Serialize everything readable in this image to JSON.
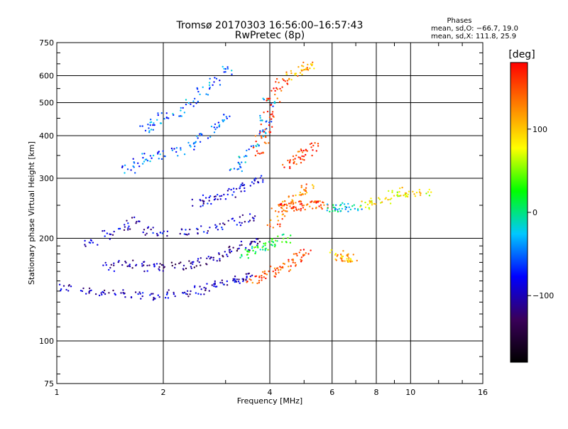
{
  "title_line1": "Tromsø 20170303 16:56:00–16:57:43",
  "title_line2": "RwPretec (8p)",
  "phases": {
    "header": "Phases",
    "line1": "mean, sd,O: −66.7, 19.0",
    "line2": "mean, sd,X: 111.8, 25.9"
  },
  "chart_data": {
    "type": "scatter",
    "title": "Tromsø 20170303 16:56:00–16:57:43",
    "subtitle": "RwPretec (8p)",
    "xlabel": "Frequency [MHz]",
    "ylabel": "Stationary phase Virtual Height [km]",
    "x_scale": "log",
    "y_scale": "log",
    "xlim": [
      1,
      16
    ],
    "ylim": [
      75,
      750
    ],
    "x_ticks": [
      1,
      2,
      4,
      6,
      8,
      10,
      16
    ],
    "x_tick_labels": [
      "1",
      "2",
      "4",
      "6",
      "8",
      "10",
      "16"
    ],
    "y_ticks": [
      75,
      100,
      200,
      300,
      400,
      500,
      600,
      750
    ],
    "y_tick_labels": [
      "75",
      "100",
      "200",
      "300",
      "400",
      "500",
      "600",
      "750"
    ],
    "grid": true,
    "colorbar": {
      "label": "[deg]",
      "range": [
        -180,
        180
      ],
      "ticks": [
        100,
        0,
        -100
      ],
      "tick_labels": [
        "100",
        "0",
        "−100"
      ],
      "colors": [
        "#000000",
        "#3a005a",
        "#0000ff",
        "#00c8ff",
        "#00ff00",
        "#ffff00",
        "#ff8000",
        "#ff0000"
      ]
    },
    "traces": [
      {
        "name": "",
        "points": [
          [
            1.05,
            143
          ],
          [
            1.2,
            141
          ],
          [
            1.35,
            139
          ],
          [
            1.5,
            137
          ],
          [
            1.7,
            136
          ],
          [
            1.9,
            136
          ],
          [
            2.1,
            137
          ],
          [
            2.3,
            139
          ],
          [
            2.5,
            141
          ],
          [
            2.7,
            144
          ],
          [
            2.9,
            147
          ],
          [
            3.1,
            150
          ],
          [
            3.3,
            152
          ],
          [
            3.5,
            154
          ]
        ],
        "phase": -100
      },
      {
        "name": "",
        "points": [
          [
            3.6,
            152
          ],
          [
            3.8,
            154
          ],
          [
            4.0,
            157
          ],
          [
            4.2,
            161
          ],
          [
            4.4,
            165
          ],
          [
            4.6,
            170
          ],
          [
            4.8,
            176
          ],
          [
            5.0,
            180
          ]
        ],
        "phase": 150
      },
      {
        "name": "",
        "points": [
          [
            1.4,
            165
          ],
          [
            1.55,
            170
          ],
          [
            1.7,
            168
          ],
          [
            1.85,
            165
          ],
          [
            2.0,
            165
          ],
          [
            2.2,
            166
          ],
          [
            2.4,
            168
          ],
          [
            2.6,
            171
          ],
          [
            2.8,
            175
          ],
          [
            3.0,
            180
          ],
          [
            3.2,
            185
          ],
          [
            3.4,
            190
          ],
          [
            3.6,
            194
          ]
        ],
        "phase": -110
      },
      {
        "name": "",
        "points": [
          [
            1.25,
            195
          ],
          [
            1.4,
            205
          ],
          [
            1.55,
            215
          ],
          [
            1.65,
            225
          ],
          [
            1.8,
            210
          ],
          [
            2.0,
            205
          ],
          [
            2.3,
            207
          ],
          [
            2.6,
            212
          ],
          [
            2.9,
            218
          ],
          [
            3.2,
            225
          ],
          [
            3.5,
            230
          ]
        ],
        "phase": -95
      },
      {
        "name": "",
        "points": [
          [
            1.6,
            320
          ],
          [
            1.7,
            335
          ],
          [
            1.8,
            345
          ],
          [
            2.0,
            350
          ],
          [
            2.2,
            360
          ],
          [
            2.4,
            375
          ],
          [
            2.6,
            395
          ],
          [
            2.8,
            420
          ],
          [
            3.0,
            450
          ]
        ],
        "phase": -55
      },
      {
        "name": "",
        "points": [
          [
            1.8,
            420
          ],
          [
            1.9,
            440
          ],
          [
            2.0,
            455
          ],
          [
            2.2,
            470
          ],
          [
            2.4,
            500
          ],
          [
            2.6,
            540
          ],
          [
            2.8,
            580
          ],
          [
            3.0,
            620
          ]
        ],
        "phase": -50
      },
      {
        "name": "",
        "points": [
          [
            2.5,
            255
          ],
          [
            2.7,
            260
          ],
          [
            2.9,
            265
          ],
          [
            3.1,
            272
          ],
          [
            3.3,
            280
          ],
          [
            3.5,
            290
          ],
          [
            3.7,
            300
          ]
        ],
        "phase": -90
      },
      {
        "name": "",
        "points": [
          [
            3.2,
            320
          ],
          [
            3.4,
            340
          ],
          [
            3.6,
            370
          ],
          [
            3.8,
            410
          ],
          [
            3.9,
            450
          ],
          [
            4.0,
            500
          ]
        ],
        "phase": -40
      },
      {
        "name": "",
        "points": [
          [
            3.4,
            180
          ],
          [
            3.6,
            185
          ],
          [
            3.8,
            188
          ],
          [
            4.0,
            190
          ],
          [
            4.2,
            195
          ],
          [
            4.4,
            200
          ]
        ],
        "phase": 15
      },
      {
        "name": "",
        "points": [
          [
            3.7,
            360
          ],
          [
            3.8,
            390
          ],
          [
            3.9,
            420
          ],
          [
            4.0,
            460
          ],
          [
            4.1,
            500
          ],
          [
            4.2,
            540
          ],
          [
            4.3,
            580
          ]
        ],
        "phase": 160
      },
      {
        "name": "",
        "points": [
          [
            4.1,
            220
          ],
          [
            4.3,
            235
          ],
          [
            4.5,
            250
          ],
          [
            4.7,
            262
          ],
          [
            4.9,
            270
          ],
          [
            5.1,
            280
          ]
        ],
        "phase": 130
      },
      {
        "name": "",
        "points": [
          [
            4.2,
            245
          ],
          [
            4.4,
            247
          ],
          [
            4.6,
            248
          ],
          [
            4.8,
            248
          ],
          [
            5.0,
            250
          ],
          [
            5.2,
            250
          ],
          [
            5.4,
            250
          ],
          [
            5.6,
            250
          ]
        ],
        "phase": 150
      },
      {
        "name": "",
        "points": [
          [
            4.5,
            330
          ],
          [
            4.7,
            340
          ],
          [
            4.9,
            350
          ],
          [
            5.1,
            360
          ],
          [
            5.3,
            370
          ]
        ],
        "phase": 160
      },
      {
        "name": "",
        "points": [
          [
            4.6,
            600
          ],
          [
            4.8,
            620
          ],
          [
            5.0,
            630
          ],
          [
            5.2,
            640
          ]
        ],
        "phase": 110
      },
      {
        "name": "",
        "points": [
          [
            6.2,
            180
          ],
          [
            6.4,
            176
          ],
          [
            6.6,
            174
          ],
          [
            6.8,
            175
          ]
        ],
        "phase": 110
      },
      {
        "name": "",
        "points": [
          [
            6.0,
            245
          ],
          [
            6.3,
            246
          ],
          [
            6.6,
            247
          ],
          [
            7.0,
            245
          ]
        ],
        "phase": -20
      },
      {
        "name": "",
        "points": [
          [
            7.5,
            250
          ],
          [
            8.0,
            255
          ],
          [
            8.5,
            260
          ],
          [
            9.0,
            270
          ],
          [
            9.5,
            275
          ],
          [
            10.0,
            270
          ],
          [
            11.0,
            270
          ]
        ],
        "phase": 80
      }
    ]
  }
}
